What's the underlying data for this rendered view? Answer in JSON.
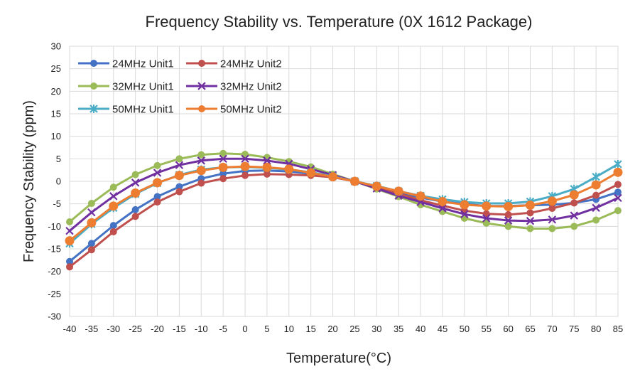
{
  "chart_data": {
    "type": "line",
    "title": "Frequency Stability vs. Temperature (0X 1612 Package)",
    "xlabel": "Temperature(°C)",
    "ylabel": "Frequency Stability (ppm)",
    "ylim": [
      -30,
      30
    ],
    "ytick_step": 5,
    "grid": "horizontal",
    "legend_position": "top-left",
    "x": [
      -40,
      -35,
      -30,
      -25,
      -20,
      -15,
      -10,
      -5,
      0,
      5,
      10,
      15,
      20,
      25,
      30,
      35,
      40,
      45,
      50,
      55,
      60,
      65,
      70,
      75,
      80,
      85
    ],
    "series": [
      {
        "name": "24MHz Unit1",
        "color": "#4472c4",
        "marker": "circle",
        "values": [
          -17.8,
          -13.8,
          -9.8,
          -6.3,
          -3.4,
          -1.2,
          0.6,
          1.7,
          2.3,
          2.4,
          2.2,
          1.7,
          1.0,
          0.0,
          -1.2,
          -2.5,
          -3.6,
          -4.5,
          -5.0,
          -5.5,
          -5.5,
          -5.3,
          -5.2,
          -4.8,
          -4.0,
          -2.4
        ]
      },
      {
        "name": "24MHz Unit2",
        "color": "#c0504d",
        "marker": "circle",
        "values": [
          -19.0,
          -15.2,
          -11.2,
          -7.8,
          -4.6,
          -2.3,
          -0.4,
          0.6,
          1.3,
          1.6,
          1.5,
          1.3,
          0.9,
          0.0,
          -1.2,
          -2.7,
          -4.2,
          -5.4,
          -6.5,
          -7.2,
          -7.4,
          -7.0,
          -6.0,
          -4.8,
          -3.1,
          -0.7
        ]
      },
      {
        "name": "32MHz Unit1",
        "color": "#9bbb59",
        "marker": "circle",
        "values": [
          -9.0,
          -4.9,
          -1.3,
          1.5,
          3.5,
          5.0,
          5.9,
          6.2,
          6.0,
          5.3,
          4.4,
          3.2,
          1.6,
          0.0,
          -1.7,
          -3.4,
          -5.2,
          -6.7,
          -8.2,
          -9.3,
          -10.0,
          -10.5,
          -10.5,
          -10.0,
          -8.6,
          -6.5
        ]
      },
      {
        "name": "32MHz Unit2",
        "color": "#7030a0",
        "marker": "x",
        "values": [
          -11.0,
          -6.9,
          -3.3,
          -0.3,
          1.9,
          3.6,
          4.6,
          5.0,
          5.0,
          4.6,
          3.9,
          2.7,
          1.4,
          0.0,
          -1.6,
          -3.2,
          -4.6,
          -6.0,
          -7.3,
          -8.2,
          -8.7,
          -8.8,
          -8.5,
          -7.6,
          -5.9,
          -3.7
        ]
      },
      {
        "name": "50MHz Unit1",
        "color": "#4bacc6",
        "marker": "asterisk",
        "values": [
          -13.8,
          -9.5,
          -5.9,
          -2.8,
          -0.4,
          1.4,
          2.6,
          3.1,
          3.2,
          3.0,
          2.6,
          2.0,
          1.1,
          0.0,
          -1.0,
          -2.2,
          -3.2,
          -4.0,
          -4.6,
          -4.9,
          -4.9,
          -4.5,
          -3.3,
          -1.7,
          1.0,
          3.8
        ]
      },
      {
        "name": "50MHz Unit2",
        "color": "#ed7d31",
        "marker": "circle",
        "values": [
          -13.2,
          -9.2,
          -5.5,
          -2.6,
          -0.3,
          1.3,
          2.4,
          3.1,
          3.3,
          3.1,
          2.7,
          1.9,
          1.0,
          0.0,
          -1.1,
          -2.2,
          -3.3,
          -4.5,
          -5.2,
          -5.5,
          -5.6,
          -5.3,
          -4.4,
          -3.0,
          -0.8,
          2.0
        ]
      }
    ]
  }
}
